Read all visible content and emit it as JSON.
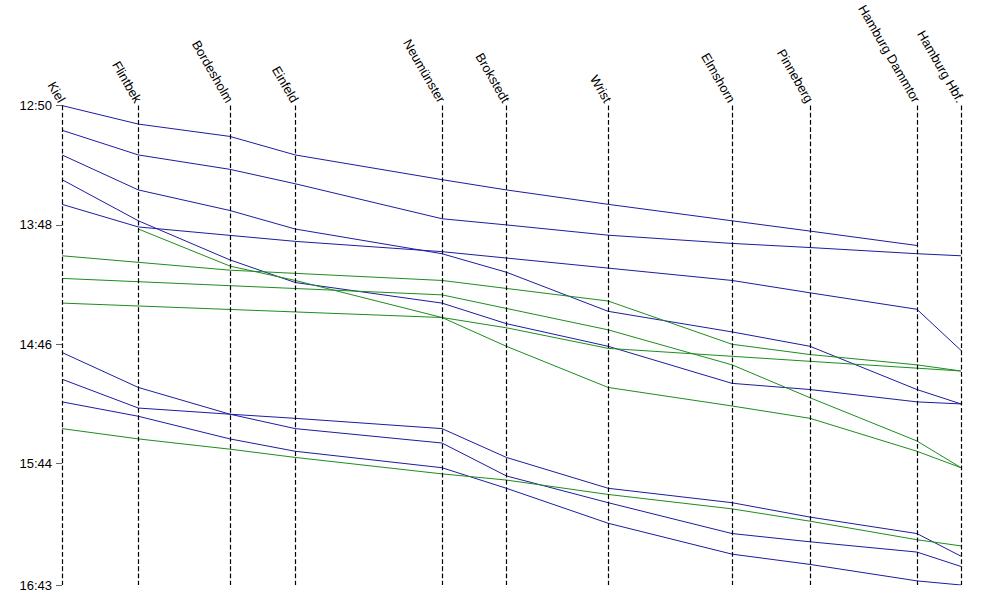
{
  "chart_data": {
    "type": "line",
    "stations": [
      {
        "name": "Kiel",
        "x": 0
      },
      {
        "name": "Flintbek",
        "x": 9.0
      },
      {
        "name": "Bordesholm",
        "x": 19.8
      },
      {
        "name": "Einfeld",
        "x": 27.5
      },
      {
        "name": "Neumünster",
        "x": 44.8
      },
      {
        "name": "Brokstedt",
        "x": 52.4
      },
      {
        "name": "Wrist",
        "x": 64.4
      },
      {
        "name": "Elmshorn",
        "x": 79.0
      },
      {
        "name": "Pinneberg",
        "x": 88.2
      },
      {
        "name": "Hamburg Dammtor",
        "x": 100.8
      },
      {
        "name": "Hamburg Hbf.",
        "x": 106
      }
    ],
    "xlim": [
      0,
      106
    ],
    "ylim": [
      770,
      1003
    ],
    "yticks": [
      {
        "value": 770,
        "label": "12:50"
      },
      {
        "value": 828,
        "label": "13:48"
      },
      {
        "value": 886,
        "label": "14:46"
      },
      {
        "value": 944,
        "label": "15:44"
      },
      {
        "value": 1003,
        "label": "16:43"
      }
    ],
    "grid": false,
    "series": [
      {
        "color": "#1c1ca0",
        "values": [
          770,
          779,
          785,
          794,
          806,
          811,
          818,
          826,
          831,
          838,
          null
        ]
      },
      {
        "color": "#1c1ca0",
        "values": [
          782,
          794,
          801,
          808,
          825,
          828,
          833,
          837,
          839,
          842,
          843
        ]
      },
      {
        "color": "#1c1ca0",
        "values": [
          794,
          811,
          821,
          830,
          842,
          851,
          870,
          880,
          887,
          908,
          915
        ]
      },
      {
        "color": "#1c1ca0",
        "values": [
          806,
          826,
          845,
          856,
          866,
          876,
          887,
          905,
          908,
          914,
          915
        ]
      },
      {
        "color": "#1c1ca0",
        "values": [
          818,
          829,
          null,
          836,
          841,
          null,
          849,
          855,
          861,
          869,
          889
        ]
      },
      {
        "color": "#1e8c1e",
        "values": [
          843,
          null,
          850,
          null,
          855,
          null,
          865,
          886,
          891,
          896,
          899
        ]
      },
      {
        "color": "#1e8c1e",
        "values": [
          854,
          null,
          null,
          null,
          862,
          null,
          879,
          896,
          912,
          933,
          946
        ]
      },
      {
        "color": "#1e8c1e",
        "values": [
          866,
          null,
          null,
          null,
          873,
          878,
          888,
          null,
          null,
          null,
          899
        ]
      },
      {
        "color": "#1e8c1e",
        "values": [
          null,
          830,
          848,
          855,
          873,
          887,
          907,
          916,
          922,
          938,
          946
        ]
      },
      {
        "color": "#1c1ca0",
        "values": [
          890,
          907,
          920,
          927,
          934,
          950,
          963,
          978,
          982,
          987,
          994
        ]
      },
      {
        "color": "#1c1ca0",
        "values": [
          903,
          917,
          920,
          922,
          927,
          941,
          956,
          963,
          970,
          978,
          989
        ]
      },
      {
        "color": "#1c1ca0",
        "values": [
          914,
          921,
          932,
          938,
          946,
          956,
          973,
          988,
          993,
          1001,
          1003
        ]
      },
      {
        "color": "#1e8c1e",
        "values": [
          927,
          932,
          937,
          941,
          949,
          952,
          959,
          966,
          972,
          981,
          984
        ]
      }
    ]
  }
}
